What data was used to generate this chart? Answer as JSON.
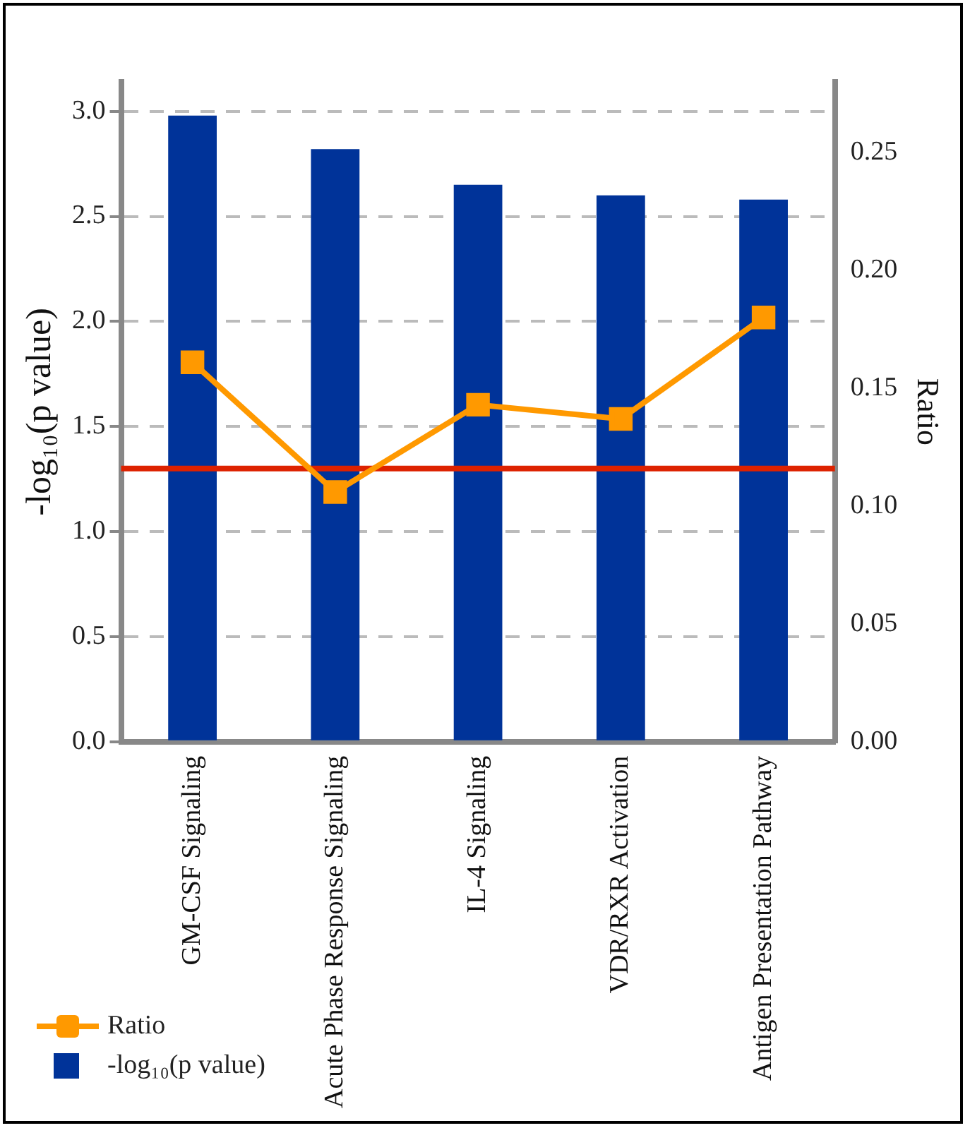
{
  "chart_data": {
    "type": "bar",
    "ylabel": "-log₁₀(p value)",
    "y2label": "Ratio",
    "categories": [
      "GM-CSF Signaling",
      "Acute Phase Response Signaling",
      "IL-4 Signaling",
      "VDR/RXR Activation",
      "Antigen Presentation Pathway"
    ],
    "series": [
      {
        "name": "Ratio",
        "type": "line",
        "axis": "y2",
        "color": "#ff9900",
        "values": [
          0.161,
          0.106,
          0.143,
          0.137,
          0.18
        ]
      },
      {
        "name": "-log₁₀(p value)",
        "color": "#003399",
        "values": [
          2.98,
          2.82,
          2.65,
          2.6,
          2.58
        ]
      }
    ],
    "ylim": [
      0,
      3.14
    ],
    "yticks": [
      {
        "value": 0,
        "label": "0.0"
      },
      {
        "value": 0.5,
        "label": "0.5"
      },
      {
        "value": 1,
        "label": "1.0"
      },
      {
        "value": 1.5,
        "label": "1.5"
      },
      {
        "value": 2,
        "label": "2.0"
      },
      {
        "value": 2.5,
        "label": "2.5"
      },
      {
        "value": 3,
        "label": "3.0"
      }
    ],
    "y2lim": [
      0,
      0.28
    ],
    "y2ticks": [
      {
        "value": 0,
        "label": "0.00"
      },
      {
        "value": 0.05,
        "label": "0.05"
      },
      {
        "value": 0.1,
        "label": "0.10"
      },
      {
        "value": 0.15,
        "label": "0.15"
      },
      {
        "value": 0.2,
        "label": "0.20"
      },
      {
        "value": 0.25,
        "label": "0.25"
      }
    ],
    "ref_lines": [
      {
        "axis": "y",
        "value": 1.3,
        "color": "#dd2200"
      }
    ],
    "grid": "y",
    "legend": "bottom left",
    "marker": "square"
  }
}
